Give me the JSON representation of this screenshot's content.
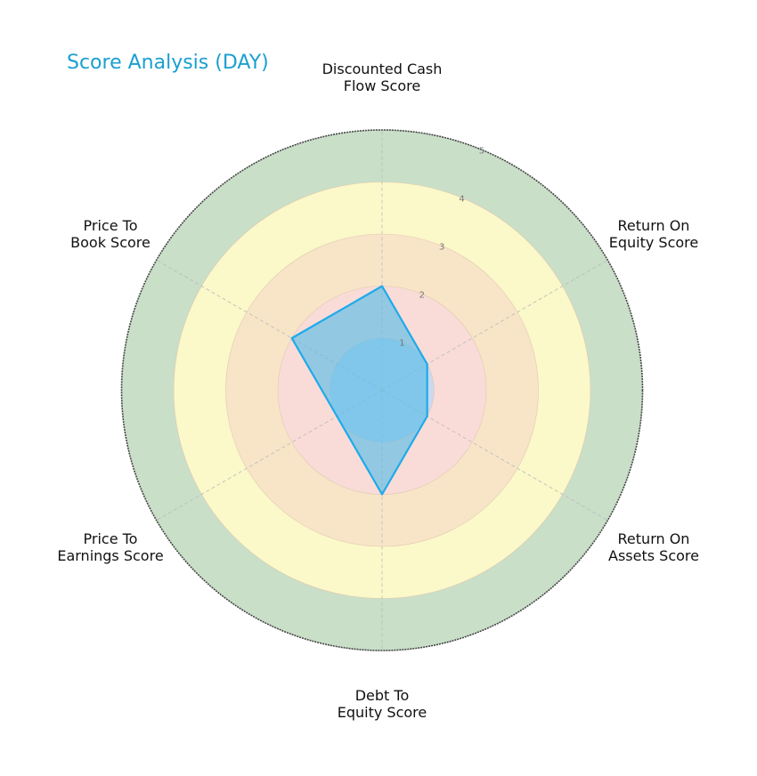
{
  "title": "Score Analysis (DAY)",
  "chart_data": {
    "type": "radar",
    "title": "Score Analysis (DAY)",
    "categories": [
      "Discounted Cash Flow Score",
      "Return On Equity Score",
      "Return On Assets Score",
      "Debt To Equity Score",
      "Price To Earnings Score",
      "Price To Book Score"
    ],
    "label_lines": [
      [
        "Discounted Cash",
        "Flow Score"
      ],
      [
        "Return On",
        "Equity Score"
      ],
      [
        "Return On",
        "Assets Score"
      ],
      [
        "Debt To",
        "Equity Score"
      ],
      [
        "Price To",
        "Earnings Score"
      ],
      [
        "Price To",
        "Book Score"
      ]
    ],
    "series": [
      {
        "name": "DAY",
        "values": [
          2,
          1,
          1,
          2,
          1,
          2
        ]
      }
    ],
    "rlim": [
      0,
      5
    ],
    "r_ticks": [
      1,
      2,
      3,
      4,
      5
    ],
    "grid": true,
    "legend": "none",
    "band_colors": [
      "#c9d9ef",
      "#f9dcd8",
      "#f8e5c8",
      "#fbf8c9",
      "#c9dfc8"
    ],
    "series_fill": "#5bbde8",
    "series_line": "#1eaaea"
  }
}
